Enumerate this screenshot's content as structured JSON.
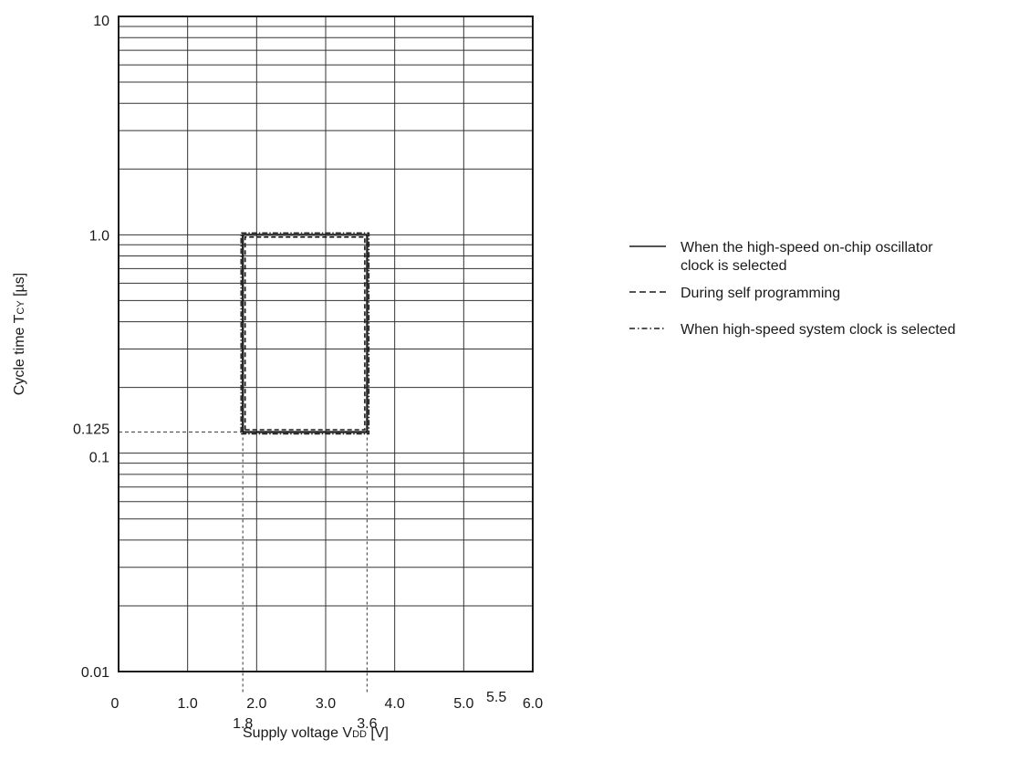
{
  "chart_data": {
    "type": "line",
    "x_axis": {
      "label_main": "Supply voltage V",
      "label_sub": "DD",
      "label_unit": " [V]",
      "min": 0,
      "max": 6,
      "ticks": [
        {
          "value": 0,
          "label": "0"
        },
        {
          "value": 1,
          "label": "1.0"
        },
        {
          "value": 2,
          "label": "2.0"
        },
        {
          "value": 3,
          "label": "3.0"
        },
        {
          "value": 4,
          "label": "4.0"
        },
        {
          "value": 5,
          "label": "5.0"
        },
        {
          "value": 6,
          "label": "6.0"
        }
      ],
      "extra_ticks": [
        {
          "value": 1.8,
          "label": "1.8"
        },
        {
          "value": 3.6,
          "label": "3.6"
        },
        {
          "value": 5.5,
          "label": "5.5"
        }
      ]
    },
    "y_axis": {
      "label_main": "Cycle time T",
      "label_sub": "CY",
      "label_unit": " [µs]",
      "scale": "log",
      "min": 0.01,
      "max": 10,
      "ticks": [
        {
          "value": 0.01,
          "label": "0.01"
        },
        {
          "value": 0.1,
          "label": "0.1"
        },
        {
          "value": 1,
          "label": "1.0"
        },
        {
          "value": 10,
          "label": "10"
        }
      ],
      "extra_ticks": [
        {
          "value": 0.125,
          "label": "0.125"
        }
      ]
    },
    "grid": true,
    "series": [
      {
        "name": "When the high-speed on-chip oscillator clock is selected",
        "style": "solid",
        "points": [
          [
            1.8,
            0.125
          ],
          [
            3.6,
            0.125
          ],
          [
            3.6,
            1.0
          ],
          [
            1.8,
            1.0
          ],
          [
            1.8,
            0.125
          ]
        ]
      },
      {
        "name": "During self programming",
        "style": "dashed",
        "points": [
          [
            1.8,
            0.125
          ],
          [
            3.6,
            0.125
          ],
          [
            3.6,
            1.0
          ],
          [
            1.8,
            1.0
          ],
          [
            1.8,
            0.125
          ]
        ]
      },
      {
        "name": "When high-speed system clock is selected",
        "style": "dashdot",
        "points": [
          [
            1.8,
            0.125
          ],
          [
            3.6,
            0.125
          ],
          [
            3.6,
            1.0
          ],
          [
            1.8,
            1.0
          ],
          [
            1.8,
            0.125
          ]
        ]
      }
    ],
    "reference_lines": [
      {
        "x": 1.8,
        "y": 0.125
      },
      {
        "x": 3.6,
        "y": 0.125
      }
    ],
    "legend": {
      "placement": "right",
      "entries": [
        {
          "lines": [
            "When the high-speed on-chip oscillator",
            "clock is selected"
          ],
          "style": "solid"
        },
        {
          "lines": [
            "During self programming"
          ],
          "style": "dashed"
        },
        {
          "lines": [
            "When high-speed system clock is selected"
          ],
          "style": "dashdot"
        }
      ]
    },
    "colors": {
      "ink": "#1a1a1a",
      "grid": "#333333",
      "dotted": "#555555"
    }
  }
}
